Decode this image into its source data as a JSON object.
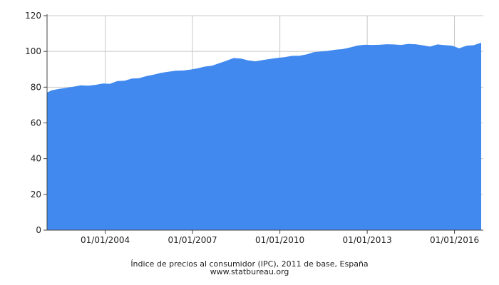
{
  "chart_data": {
    "type": "area",
    "title": "Índice de precios al consumidor (IPC), 2011 de base, España",
    "source": "www.statbureau.org",
    "color": "#4189ef",
    "grid": true,
    "ylim": [
      0,
      120
    ],
    "y_ticks": [
      "0",
      "20",
      "40",
      "60",
      "80",
      "100",
      "120"
    ],
    "x_ticks": [
      "01/01/2004",
      "01/01/2007",
      "01/01/2010",
      "01/01/2013",
      "01/01/2016"
    ],
    "xlim": [
      "2002-01",
      "2016-12"
    ],
    "series": [
      {
        "x": [
          "2002-01",
          "2002-03",
          "2002-06",
          "2002-09",
          "2002-12",
          "2003-03",
          "2003-06",
          "2003-09",
          "2003-12",
          "2004-03",
          "2004-06",
          "2004-09",
          "2004-12",
          "2005-03",
          "2005-06",
          "2005-09",
          "2005-12",
          "2006-03",
          "2006-06",
          "2006-09",
          "2006-12",
          "2007-03",
          "2007-06",
          "2007-09",
          "2007-12",
          "2008-03",
          "2008-06",
          "2008-09",
          "2008-12",
          "2009-03",
          "2009-06",
          "2009-09",
          "2009-12",
          "2010-03",
          "2010-06",
          "2010-09",
          "2010-12",
          "2011-03",
          "2011-06",
          "2011-09",
          "2011-12",
          "2012-03",
          "2012-06",
          "2012-09",
          "2012-12",
          "2013-03",
          "2013-06",
          "2013-09",
          "2013-12",
          "2014-03",
          "2014-06",
          "2014-09",
          "2014-12",
          "2015-03",
          "2015-06",
          "2015-09",
          "2015-12",
          "2016-03",
          "2016-06",
          "2016-09",
          "2016-12"
        ],
        "values": [
          77.0,
          78.2,
          79.0,
          79.6,
          80.3,
          81.0,
          80.8,
          81.3,
          82.0,
          81.9,
          83.4,
          83.6,
          84.8,
          85.0,
          86.2,
          87.0,
          88.0,
          88.6,
          89.2,
          89.3,
          89.8,
          90.5,
          91.5,
          92.0,
          93.4,
          94.8,
          96.3,
          96.0,
          95.0,
          94.5,
          95.2,
          95.8,
          96.4,
          96.8,
          97.5,
          97.6,
          98.3,
          99.6,
          100.0,
          100.4,
          101.0,
          101.3,
          102.2,
          103.3,
          103.7,
          103.6,
          103.7,
          104.0,
          103.9,
          103.6,
          104.2,
          104.0,
          103.4,
          102.7,
          103.9,
          103.5,
          103.2,
          101.8,
          103.2,
          103.5,
          104.9
        ]
      }
    ]
  }
}
